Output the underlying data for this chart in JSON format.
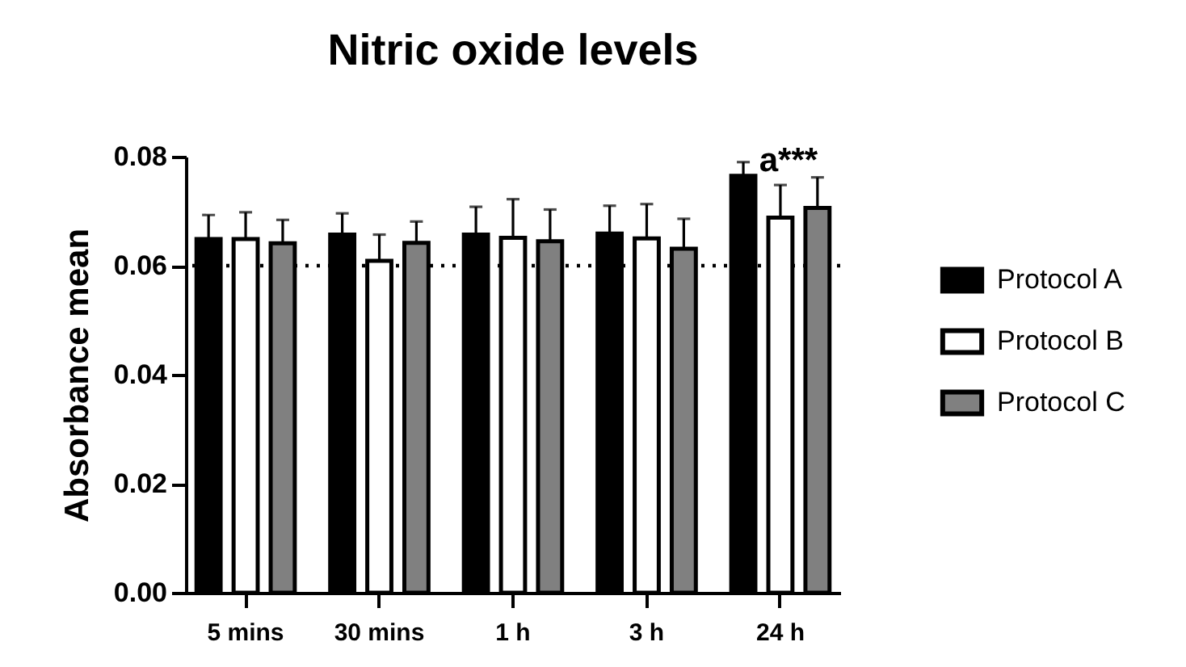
{
  "chart_data": {
    "type": "bar",
    "title": "Nitric oxide levels",
    "ylabel": "Absorbance mean",
    "categories": [
      "5 mins",
      "30 mins",
      "1 h",
      "3 h",
      "24 h"
    ],
    "series": [
      {
        "name": "Protocol A",
        "color": "#000000",
        "values": [
          0.0649,
          0.0657,
          0.0657,
          0.0659,
          0.0765
        ],
        "errors": [
          0.0044,
          0.0039,
          0.0051,
          0.0051,
          0.0025
        ]
      },
      {
        "name": "Protocol B",
        "color": "#ffffff",
        "values": [
          0.0649,
          0.0609,
          0.0651,
          0.065,
          0.0688
        ],
        "errors": [
          0.0049,
          0.0048,
          0.0071,
          0.0063,
          0.006
        ]
      },
      {
        "name": "Protocol C",
        "color": "#808080",
        "values": [
          0.0641,
          0.0642,
          0.0645,
          0.0631,
          0.0706
        ],
        "errors": [
          0.0043,
          0.0039,
          0.0058,
          0.0055,
          0.0056
        ]
      }
    ],
    "ylim": [
      0,
      0.08
    ],
    "yticks": [
      {
        "value": 0,
        "label": "0.00"
      },
      {
        "value": 0.02,
        "label": "0.02"
      },
      {
        "value": 0.04,
        "label": "0.04"
      },
      {
        "value": 0.06,
        "label": "0.06"
      },
      {
        "value": 0.08,
        "label": "0.08"
      }
    ],
    "ref_lines": [
      {
        "axis": "y",
        "value": 0.06,
        "color": "#000000",
        "line_style": "dotted"
      }
    ],
    "annotations": [
      "a***"
    ],
    "legend": "right"
  }
}
